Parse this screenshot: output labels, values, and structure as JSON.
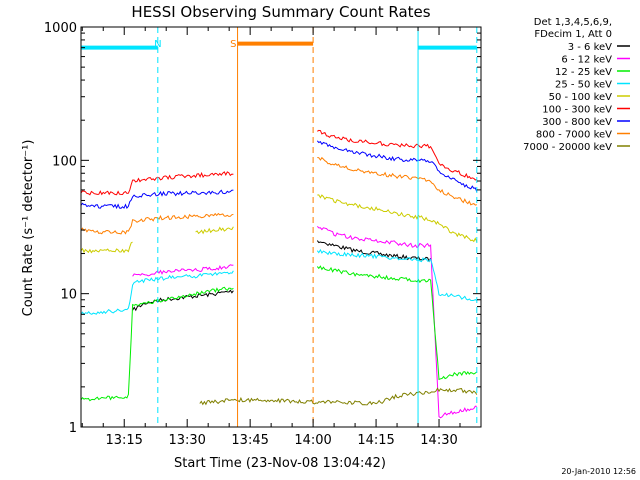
{
  "chart_data": {
    "type": "line",
    "title": "HESSI Observing Summary Count Rates",
    "xlabel": "Start Time (23-Nov-08 13:04:42)",
    "ylabel": "Count Rate (s⁻¹ detector⁻¹)",
    "yscale": "log",
    "ylim": [
      1,
      1000
    ],
    "xlim": [
      "13:04:42",
      "14:40:00"
    ],
    "x_ticks": [
      "13:15",
      "13:30",
      "13:45",
      "14:00",
      "14:15",
      "14:30"
    ],
    "y_ticks": [
      "1",
      "10",
      "100",
      "1000"
    ],
    "legend_position": "right",
    "legend_header": [
      "Det 1,3,4,5,6,9,",
      "FDecim 1, Att 0"
    ],
    "annotations": [
      {
        "text": "N",
        "x": "13:23",
        "color": "#00e5ff"
      },
      {
        "text": "S",
        "x": "13:41",
        "color": "#ff7f00"
      }
    ],
    "footer": "20-Jan-2010 12:56",
    "flags": [
      {
        "name": "night",
        "color": "#00e5ff",
        "level": 700,
        "intervals": [
          [
            "13:04:42",
            "13:23"
          ],
          [
            "14:25",
            "14:39"
          ]
        ]
      },
      {
        "name": "saa",
        "color": "#ff7f00",
        "level": 750,
        "intervals": [
          [
            "13:42",
            "14:00"
          ]
        ]
      }
    ],
    "series": [
      {
        "name": "3 - 6 keV",
        "color": "#000000",
        "x": [
          "13:17",
          "13:20",
          "13:24",
          "13:28",
          "13:32",
          "13:36",
          "13:41",
          "14:01",
          "14:05",
          "14:10",
          "14:15",
          "14:20",
          "14:24",
          "14:28"
        ],
        "y": [
          7.5,
          8.5,
          9,
          9.3,
          9.6,
          9.9,
          10.5,
          25,
          23,
          21,
          20,
          19,
          18.5,
          18
        ]
      },
      {
        "name": "6 - 12 keV",
        "color": "#ff00ff",
        "x": [
          "13:17",
          "13:20",
          "13:24",
          "13:28",
          "13:32",
          "13:36",
          "13:41",
          "14:01",
          "14:05",
          "14:10",
          "14:15",
          "14:20",
          "14:24",
          "14:28",
          "14:30",
          "14:34",
          "14:39"
        ],
        "y": [
          13.5,
          14,
          14.5,
          15,
          15,
          15.5,
          16,
          32,
          28,
          26,
          25,
          24,
          23,
          23,
          1.2,
          1.3,
          1.4
        ]
      },
      {
        "name": "12 - 25 keV",
        "color": "#00ee00",
        "x": [
          "13:04:42",
          "13:16",
          "13:17",
          "13:20",
          "13:24",
          "13:28",
          "13:32",
          "13:36",
          "13:41",
          "14:01",
          "14:05",
          "14:10",
          "14:15",
          "14:20",
          "14:24",
          "14:28",
          "14:30",
          "14:34",
          "14:39"
        ],
        "y": [
          1.6,
          1.7,
          8,
          8.5,
          9,
          9.5,
          10,
          10.5,
          11,
          16,
          15,
          14,
          13.5,
          13,
          12.5,
          12.5,
          2.3,
          2.5,
          2.6
        ]
      },
      {
        "name": "25 - 50 keV",
        "color": "#00e5ff",
        "x": [
          "13:04:42",
          "13:08",
          "13:12",
          "13:16",
          "13:17",
          "13:20",
          "13:24",
          "13:28",
          "13:32",
          "13:36",
          "13:41",
          "14:01",
          "14:05",
          "14:10",
          "14:15",
          "14:20",
          "14:24",
          "14:28",
          "14:30",
          "14:34",
          "14:39"
        ],
        "y": [
          7,
          7.2,
          7.4,
          7.6,
          12,
          12.5,
          13,
          13.5,
          13.5,
          14,
          14.5,
          21,
          20,
          19.5,
          19,
          18.5,
          18,
          18,
          10,
          9.5,
          9
        ]
      },
      {
        "name": "50 - 100 keV",
        "color": "#cccc00",
        "x": [
          "13:04:42",
          "13:10",
          "13:16",
          "13:17",
          "13:24",
          "13:32",
          "13:41",
          "14:01",
          "14:05",
          "14:10",
          "14:15",
          "14:20",
          "14:24",
          "14:28",
          "14:30",
          "14:34",
          "14:39"
        ],
        "y": [
          21,
          21,
          21,
          25,
          27,
          29,
          31,
          55,
          50,
          46,
          43,
          40,
          38,
          36,
          33,
          28,
          25
        ]
      },
      {
        "name": "100 - 300 keV",
        "color": "#ff0000",
        "x": [
          "13:04:42",
          "13:10",
          "13:16",
          "13:17",
          "13:24",
          "13:32",
          "13:41",
          "14:01",
          "14:05",
          "14:10",
          "14:15",
          "14:20",
          "14:24",
          "14:28",
          "14:30",
          "14:34",
          "14:39"
        ],
        "y": [
          57,
          57,
          57,
          70,
          74,
          77,
          80,
          165,
          150,
          140,
          135,
          130,
          128,
          127,
          95,
          82,
          72
        ]
      },
      {
        "name": "300 - 800 keV",
        "color": "#0000ff",
        "x": [
          "13:04:42",
          "13:10",
          "13:16",
          "13:17",
          "13:24",
          "13:32",
          "13:41",
          "14:01",
          "14:05",
          "14:10",
          "14:15",
          "14:20",
          "14:24",
          "14:28",
          "14:30",
          "14:34",
          "14:39"
        ],
        "y": [
          46,
          45,
          45,
          54,
          56,
          57,
          58,
          140,
          125,
          115,
          108,
          102,
          100,
          98,
          83,
          70,
          60
        ]
      },
      {
        "name": "800 - 7000 keV",
        "color": "#ff7f00",
        "x": [
          "13:04:42",
          "13:10",
          "13:16",
          "13:17",
          "13:24",
          "13:32",
          "13:41",
          "14:01",
          "14:05",
          "14:10",
          "14:15",
          "14:20",
          "14:24",
          "14:28",
          "14:30",
          "14:34",
          "14:39"
        ],
        "y": [
          30,
          29,
          29,
          35,
          37,
          38,
          39,
          105,
          92,
          85,
          80,
          76,
          73,
          71,
          60,
          52,
          46
        ]
      },
      {
        "name": "7000 - 20000 keV",
        "color": "#808000",
        "x": [
          "13:33",
          "13:41",
          "14:15",
          "14:20",
          "14:25",
          "14:30",
          "14:35",
          "14:39"
        ],
        "y": [
          1.5,
          1.6,
          1.5,
          1.7,
          1.8,
          1.9,
          1.9,
          1.8
        ]
      }
    ]
  }
}
